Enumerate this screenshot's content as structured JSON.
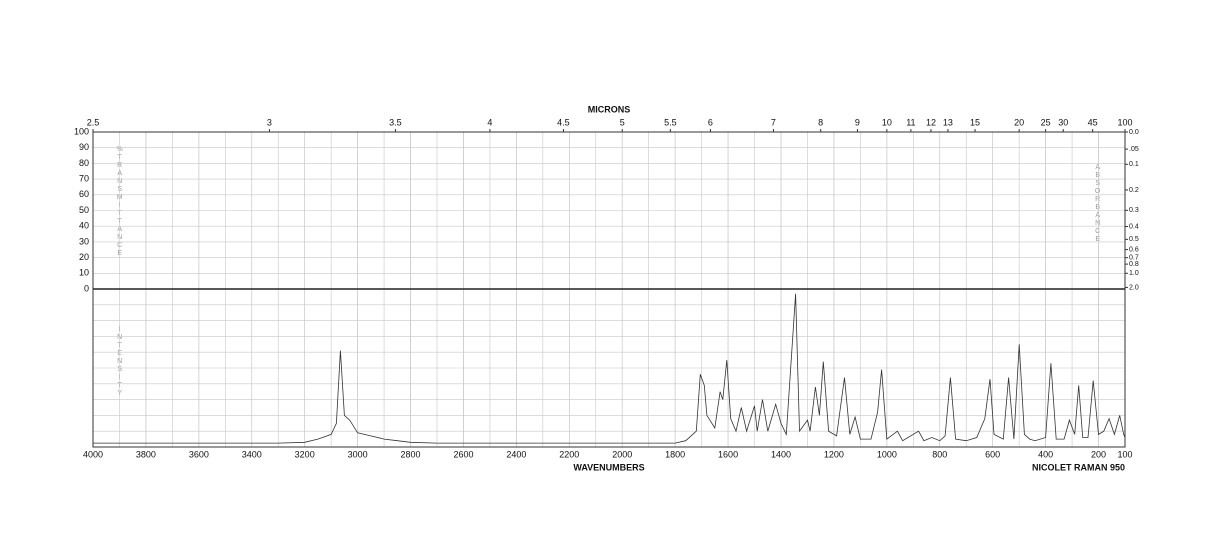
{
  "chart_data": {
    "type": "line",
    "x_label": "WAVENUMBERS",
    "x2_label": "MICRONS",
    "y_label": "%TRANSMITTANCE",
    "y2_label": "ABSORBANCE",
    "y3_label": "INTENSITY",
    "instrument": "NICOLET RAMAN 950",
    "xlim": [
      4000,
      100
    ],
    "xticks": [
      4000,
      3800,
      3600,
      3400,
      3200,
      3000,
      2800,
      2600,
      2400,
      2200,
      2000,
      1800,
      1600,
      1400,
      1200,
      1000,
      800,
      600,
      400,
      200,
      100
    ],
    "x2ticks": [
      2.5,
      3,
      3.5,
      4,
      4.5,
      5,
      5.5,
      6,
      7,
      8,
      9,
      10,
      11,
      12,
      13,
      15,
      20,
      25,
      30,
      45,
      100
    ],
    "ylim": [
      0,
      100
    ],
    "yticks": [
      0,
      10,
      20,
      30,
      40,
      50,
      60,
      70,
      80,
      90,
      100
    ],
    "y2ticks": [
      {
        "value": 0,
        "label": "0.0"
      },
      {
        "value": 0.05,
        "label": ".05"
      },
      0.1,
      0.2,
      0.3,
      0.4,
      0.5,
      0.6,
      0.7,
      0.8,
      {
        "value": 1,
        "label": "1.0"
      },
      {
        "value": 2,
        "label": "2.0"
      }
    ],
    "y3lim": [
      0,
      100
    ],
    "grid": true,
    "x": [
      4000,
      3600,
      3300,
      3200,
      3150,
      3100,
      3080,
      3065,
      3050,
      3030,
      3000,
      2950,
      2900,
      2850,
      2800,
      2700,
      1800,
      1760,
      1720,
      1705,
      1690,
      1680,
      1650,
      1630,
      1620,
      1605,
      1590,
      1570,
      1550,
      1530,
      1500,
      1490,
      1470,
      1450,
      1420,
      1400,
      1380,
      1345,
      1330,
      1300,
      1290,
      1270,
      1255,
      1240,
      1220,
      1190,
      1160,
      1140,
      1120,
      1100,
      1060,
      1035,
      1020,
      1000,
      960,
      940,
      880,
      860,
      830,
      800,
      780,
      760,
      740,
      700,
      660,
      630,
      610,
      595,
      560,
      540,
      520,
      500,
      480,
      460,
      440,
      400,
      380,
      360,
      330,
      310,
      290,
      275,
      260,
      240,
      220,
      200,
      180,
      160,
      140,
      120,
      105,
      100
    ],
    "series": [
      {
        "color": "#333333",
        "axis": "y3",
        "values": [
          2.5,
          2.5,
          2.5,
          3,
          5,
          8,
          15,
          61,
          20,
          17,
          9,
          7,
          5,
          4,
          3,
          2.5,
          2.5,
          4,
          10,
          46,
          39,
          20,
          12,
          35,
          30,
          55,
          18,
          10,
          25,
          10,
          26,
          10,
          30,
          10,
          27,
          15,
          8,
          97,
          10,
          17,
          10,
          38,
          20,
          54,
          10,
          7,
          44,
          8,
          19,
          5,
          5,
          22,
          49,
          5,
          10,
          4,
          10,
          4,
          6,
          4,
          7,
          44,
          5,
          4,
          6,
          18,
          43,
          8,
          5,
          44,
          5,
          65,
          8,
          5,
          4,
          6,
          53,
          5,
          5,
          17,
          8,
          39,
          6,
          6,
          42,
          8,
          10,
          18,
          8,
          20,
          8,
          6
        ]
      }
    ]
  }
}
